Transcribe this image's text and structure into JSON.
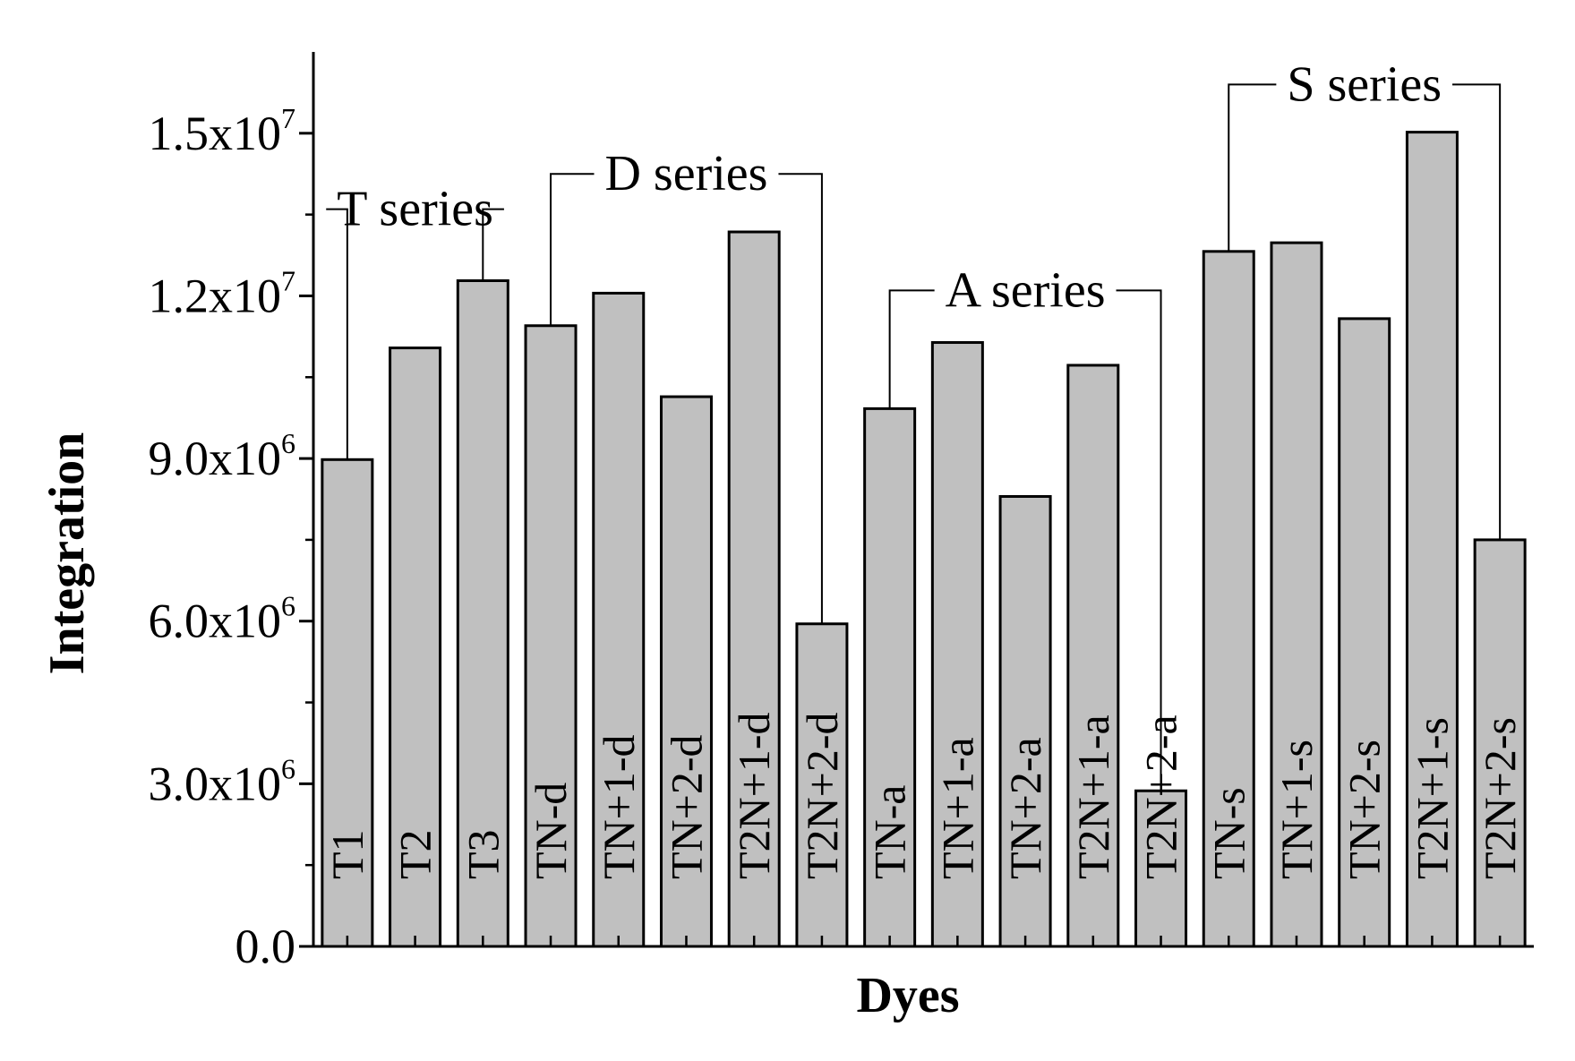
{
  "chart_data": {
    "type": "bar",
    "xlabel": "Dyes",
    "ylabel": "Integration",
    "ylim": [
      0,
      16500000
    ],
    "y_ticks": [
      {
        "value": 0,
        "mantissa": "0.0",
        "exp": ""
      },
      {
        "value": 3000000,
        "mantissa": "3.0x10",
        "exp": "6"
      },
      {
        "value": 6000000,
        "mantissa": "6.0x10",
        "exp": "6"
      },
      {
        "value": 9000000,
        "mantissa": "9.0x10",
        "exp": "6"
      },
      {
        "value": 12000000,
        "mantissa": "1.2x10",
        "exp": "7"
      },
      {
        "value": 15000000,
        "mantissa": "1.5x10",
        "exp": "7"
      }
    ],
    "y_minor_step": 1500000,
    "categories": [
      "T1",
      "T2",
      "T3",
      "TN-d",
      "TN+1-d",
      "TN+2-d",
      "T2N+1-d",
      "T2N+2-d",
      "TN-a",
      "TN+1-a",
      "TN+2-a",
      "T2N+1-a",
      "T2N+2-a",
      "TN-s",
      "TN+1-s",
      "TN+2-s",
      "T2N+1-s",
      "T2N+2-s"
    ],
    "values": [
      8980000,
      11040000,
      12280000,
      11450000,
      12050000,
      10140000,
      13180000,
      5950000,
      9920000,
      11140000,
      8300000,
      10720000,
      2870000,
      12820000,
      12980000,
      11580000,
      15020000,
      7500000
    ],
    "bar_color": "#c0c0c0",
    "grid": false,
    "legend": "none",
    "annotations": [
      {
        "label": "T series",
        "start": 0,
        "end": 2,
        "y": 13600000
      },
      {
        "label": "D series",
        "start": 3,
        "end": 7,
        "y": 14250000
      },
      {
        "label": "A series",
        "start": 8,
        "end": 12,
        "y": 12100000
      },
      {
        "label": "S series",
        "start": 13,
        "end": 17,
        "y": 15900000
      }
    ]
  }
}
